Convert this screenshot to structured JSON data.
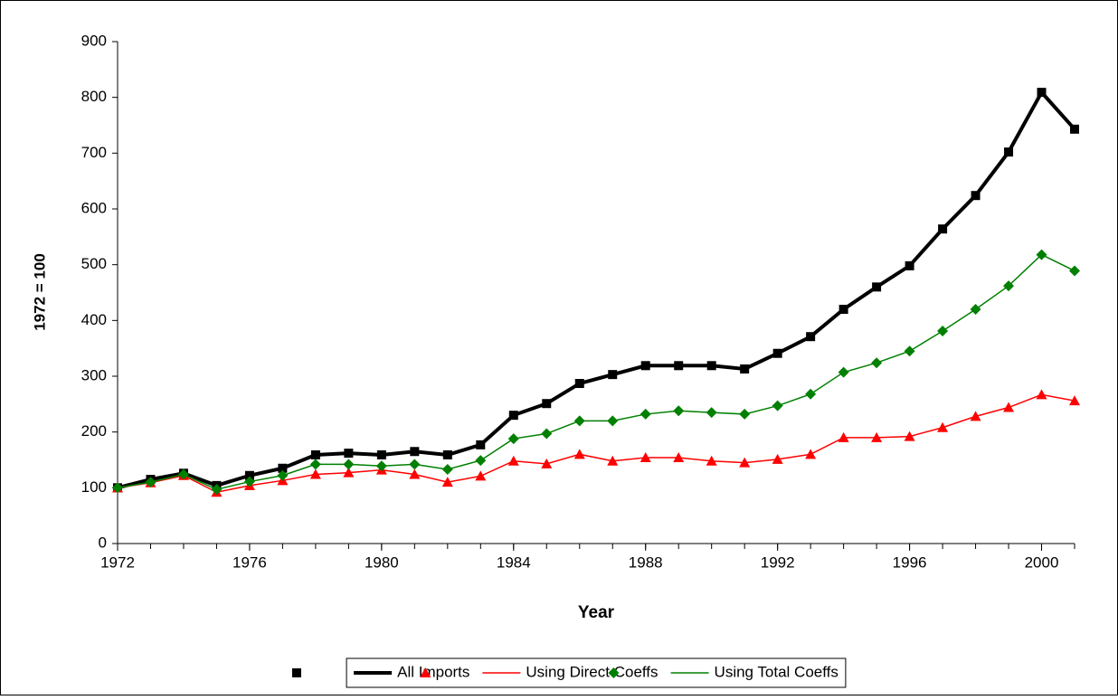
{
  "chart_data": {
    "type": "line",
    "x_label": "Year",
    "y_label": "1972 = 100",
    "x": [
      1972,
      1973,
      1974,
      1975,
      1976,
      1977,
      1978,
      1979,
      1980,
      1981,
      1982,
      1983,
      1984,
      1985,
      1986,
      1987,
      1988,
      1989,
      1990,
      1991,
      1992,
      1993,
      1994,
      1995,
      1996,
      1997,
      1998,
      1999,
      2000,
      2001
    ],
    "series": [
      {
        "name": "All Imports",
        "color": "#000000",
        "marker": "square",
        "values": [
          100,
          115,
          126,
          104,
          122,
          135,
          159,
          162,
          159,
          165,
          159,
          177,
          230,
          251,
          287,
          303,
          319,
          319,
          319,
          313,
          341,
          371,
          420,
          460,
          498,
          564,
          624,
          702,
          809,
          743
        ]
      },
      {
        "name": "Using Direct Coeffs",
        "color": "#ff0000",
        "marker": "triangle",
        "values": [
          100,
          109,
          122,
          92,
          104,
          113,
          124,
          127,
          132,
          124,
          110,
          121,
          148,
          143,
          160,
          148,
          154,
          154,
          148,
          145,
          151,
          160,
          190,
          190,
          192,
          208,
          228,
          244,
          267,
          256
        ]
      },
      {
        "name": "Using Total Coeffs",
        "color": "#008000",
        "marker": "diamond",
        "values": [
          100,
          110,
          124,
          97,
          111,
          122,
          142,
          142,
          139,
          142,
          133,
          149,
          188,
          197,
          220,
          220,
          232,
          238,
          235,
          232,
          247,
          268,
          307,
          324,
          345,
          381,
          420,
          462,
          518,
          489
        ]
      }
    ],
    "xlim": [
      1972,
      2001
    ],
    "xticks": [
      1972,
      1976,
      1980,
      1984,
      1988,
      1992,
      1996,
      2000
    ],
    "ylim": [
      0,
      900
    ],
    "yticks": [
      0,
      100,
      200,
      300,
      400,
      500,
      600,
      700,
      800,
      900
    ],
    "legend": "bottom"
  }
}
